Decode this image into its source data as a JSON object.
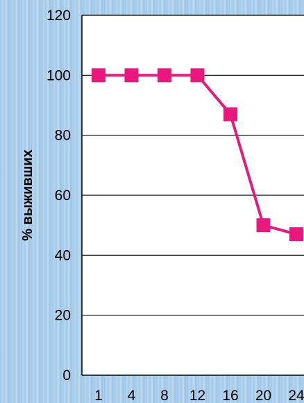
{
  "chart_data": {
    "type": "line",
    "title": "",
    "xlabel": "",
    "ylabel": "% выживших",
    "x": [
      "1",
      "4",
      "8",
      "12",
      "16",
      "20",
      "24"
    ],
    "series": [
      {
        "values": [
          100,
          100,
          100,
          100,
          87,
          50,
          47
        ],
        "color": "#e8197c",
        "marker": "square"
      }
    ],
    "ylim": [
      0,
      120
    ],
    "yticks": [
      "0",
      "20",
      "40",
      "60",
      "80",
      "100",
      "120"
    ],
    "grid": "horizontal",
    "legend": "none"
  }
}
